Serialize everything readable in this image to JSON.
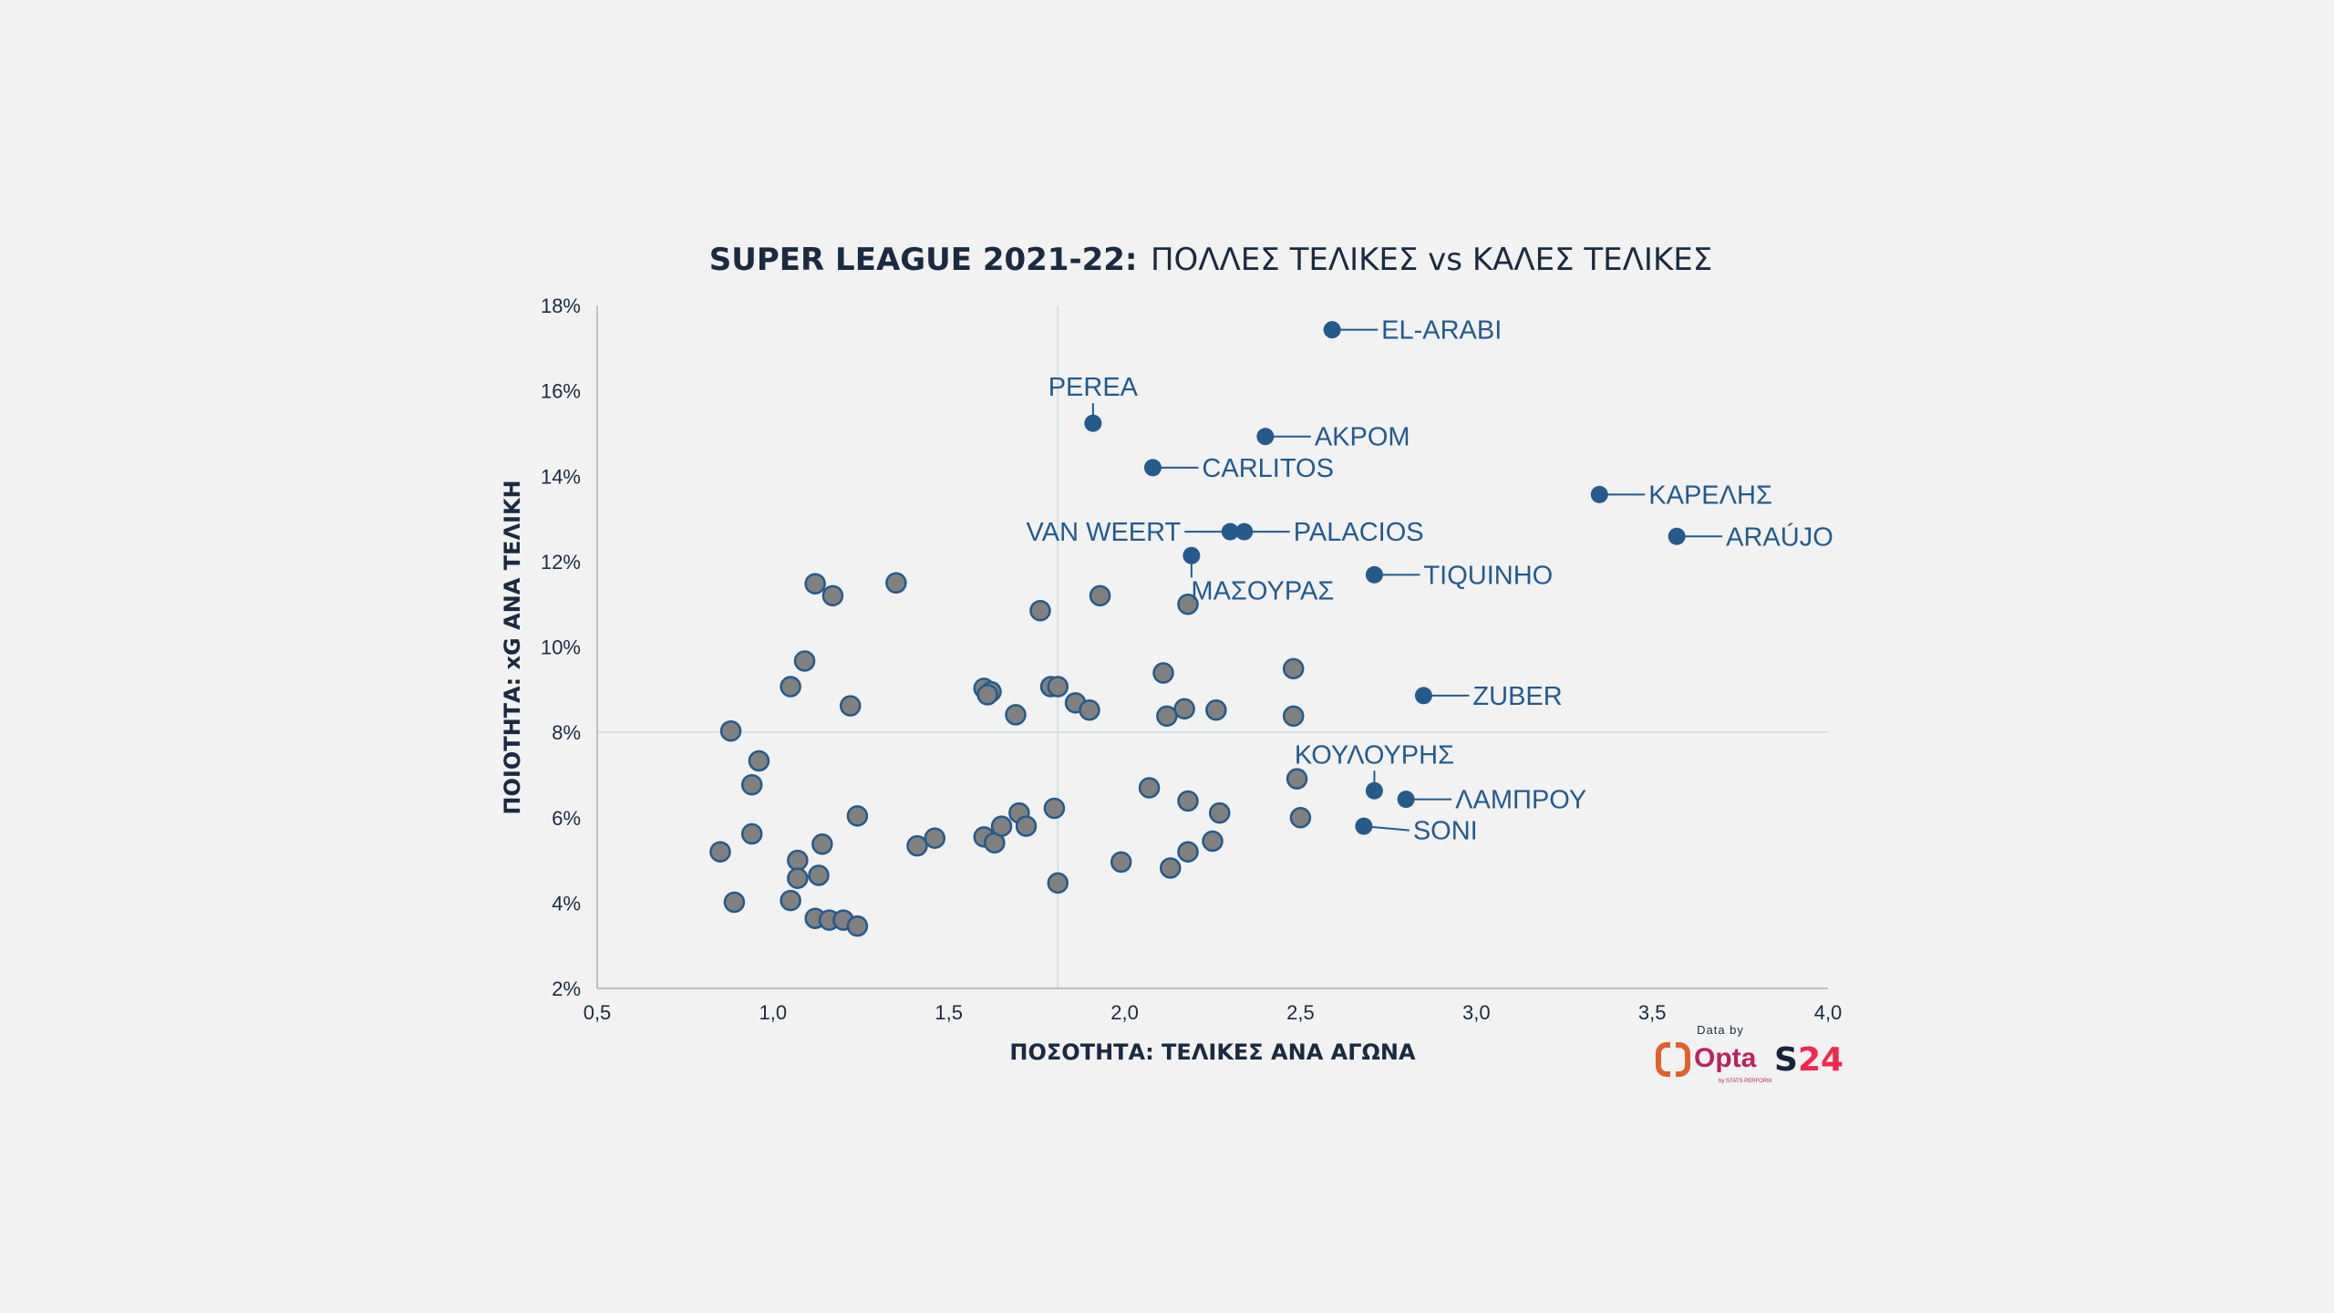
{
  "chart_data": {
    "type": "scatter",
    "title_bold": "SUPER LEAGUE 2021-22:",
    "title_rest": "ΠΟΛΛΕΣ ΤΕΛΙΚΕΣ vs ΚΑΛΕΣ ΤΕΛΙΚΕΣ",
    "xlabel": "ΠΟΣΟΤΗΤΑ: ΤΕΛΙΚΕΣ ΑΝΑ ΑΓΩΝΑ",
    "ylabel": "ΠΟΙΟΤΗΤΑ: xG ΑΝΑ ΤΕΛΙΚΗ",
    "xlim": [
      0.5,
      4.0
    ],
    "ylim": [
      2,
      18
    ],
    "x_ticks": [
      0.5,
      1.0,
      1.5,
      2.0,
      2.5,
      3.0,
      3.5,
      4.0
    ],
    "x_tick_labels": [
      "0,5",
      "1,0",
      "1,5",
      "2,0",
      "2,5",
      "3,0",
      "3,5",
      "4,0"
    ],
    "y_ticks": [
      2,
      4,
      6,
      8,
      10,
      12,
      14,
      16,
      18
    ],
    "y_tick_labels": [
      "2%",
      "4%",
      "6%",
      "8%",
      "10%",
      "12%",
      "14%",
      "16%",
      "18%"
    ],
    "reference_lines": {
      "x": 1.81,
      "y": 8.0
    },
    "colors": {
      "highlight": "#245a8c",
      "other_fill": "#808080",
      "other_stroke": "#245a8c",
      "ref_line": "#c9dede",
      "axis": "#b0b0b0"
    },
    "labeled_points": [
      {
        "name": "EL-ARABI",
        "x": 2.59,
        "y": 17.43,
        "label_side": "right"
      },
      {
        "name": "PEREA",
        "x": 1.91,
        "y": 15.24,
        "label_side": "top"
      },
      {
        "name": "ΑΚΡΟΜ",
        "x": 2.4,
        "y": 14.93,
        "label_side": "right"
      },
      {
        "name": "CARLITOS",
        "x": 2.08,
        "y": 14.2,
        "label_side": "right"
      },
      {
        "name": "ΚΑΡΕΛΗΣ",
        "x": 3.35,
        "y": 13.57,
        "label_side": "right"
      },
      {
        "name": "ARAÚJO",
        "x": 3.57,
        "y": 12.59,
        "label_side": "right"
      },
      {
        "name": "VAN WEERT",
        "x": 2.3,
        "y": 12.7,
        "label_side": "left"
      },
      {
        "name": "PALACIOS",
        "x": 2.34,
        "y": 12.7,
        "label_side": "right"
      },
      {
        "name": "ΜΑΣΟΥΡΑΣ",
        "x": 2.19,
        "y": 12.14,
        "label_side": "bottom"
      },
      {
        "name": "TIQUINHO",
        "x": 2.71,
        "y": 11.69,
        "label_side": "right"
      },
      {
        "name": "ZUBER",
        "x": 2.85,
        "y": 8.86,
        "label_side": "right"
      },
      {
        "name": "ΚΟΥΛΟΥΡΗΣ",
        "x": 2.71,
        "y": 6.63,
        "label_side": "top"
      },
      {
        "name": "ΛΑΜΠΡΟΥ",
        "x": 2.8,
        "y": 6.43,
        "label_side": "right"
      },
      {
        "name": "SONI",
        "x": 2.68,
        "y": 5.8,
        "label_side": "right"
      }
    ],
    "other_points": [
      [
        1.12,
        11.48
      ],
      [
        1.17,
        11.2
      ],
      [
        1.35,
        11.5
      ],
      [
        1.76,
        10.85
      ],
      [
        1.93,
        11.2
      ],
      [
        2.18,
        11.0
      ],
      [
        1.09,
        9.67
      ],
      [
        1.05,
        9.07
      ],
      [
        1.22,
        8.62
      ],
      [
        0.88,
        8.03
      ],
      [
        1.6,
        9.03
      ],
      [
        1.62,
        8.95
      ],
      [
        1.61,
        8.88
      ],
      [
        1.79,
        9.07
      ],
      [
        1.81,
        9.07
      ],
      [
        1.86,
        8.69
      ],
      [
        1.9,
        8.52
      ],
      [
        1.69,
        8.41
      ],
      [
        2.11,
        9.39
      ],
      [
        2.12,
        8.38
      ],
      [
        2.17,
        8.55
      ],
      [
        2.26,
        8.52
      ],
      [
        2.48,
        9.49
      ],
      [
        2.48,
        8.38
      ],
      [
        0.96,
        7.33
      ],
      [
        0.94,
        6.77
      ],
      [
        1.24,
        6.04
      ],
      [
        0.94,
        5.62
      ],
      [
        0.85,
        5.2
      ],
      [
        1.14,
        5.38
      ],
      [
        1.07,
        5.0
      ],
      [
        1.07,
        4.58
      ],
      [
        1.13,
        4.65
      ],
      [
        0.89,
        4.02
      ],
      [
        1.05,
        4.06
      ],
      [
        1.12,
        3.64
      ],
      [
        1.16,
        3.6
      ],
      [
        1.2,
        3.6
      ],
      [
        1.24,
        3.46
      ],
      [
        1.41,
        5.34
      ],
      [
        1.46,
        5.52
      ],
      [
        1.6,
        5.55
      ],
      [
        1.63,
        5.41
      ],
      [
        1.65,
        5.8
      ],
      [
        1.7,
        6.11
      ],
      [
        1.72,
        5.8
      ],
      [
        1.8,
        6.22
      ],
      [
        1.81,
        4.47
      ],
      [
        1.99,
        4.96
      ],
      [
        2.07,
        6.7
      ],
      [
        2.18,
        6.39
      ],
      [
        2.13,
        4.82
      ],
      [
        2.18,
        5.2
      ],
      [
        2.27,
        6.11
      ],
      [
        2.25,
        5.45
      ],
      [
        2.49,
        6.91
      ],
      [
        2.5,
        6.0
      ]
    ]
  },
  "credits": {
    "data_by": "Data by",
    "provider": "Opta",
    "provider_sub": "by STATS PERFORM",
    "brand_s": "S",
    "brand_24": "24"
  }
}
